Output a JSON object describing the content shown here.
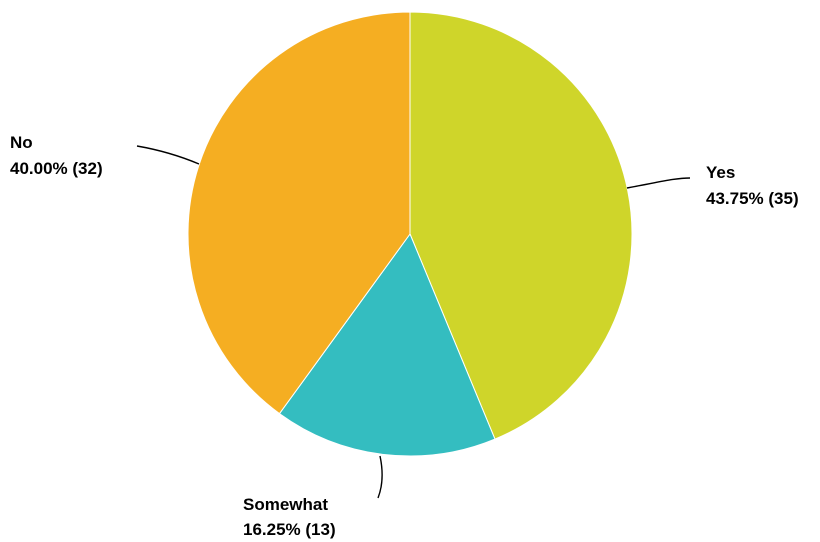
{
  "chart_data": {
    "type": "pie",
    "slices": [
      {
        "label": "Yes",
        "value_text": "43.75% (35)",
        "percent": 43.75,
        "count": 35,
        "color": "#cfd52a"
      },
      {
        "label": "Somewhat",
        "value_text": "16.25% (13)",
        "percent": 16.25,
        "count": 13,
        "color": "#34bdc0"
      },
      {
        "label": "No",
        "value_text": "40.00% (32)",
        "percent": 40.0,
        "count": 32,
        "color": "#f5ae22"
      }
    ],
    "start_angle": "12 o'clock",
    "direction": "clockwise"
  }
}
